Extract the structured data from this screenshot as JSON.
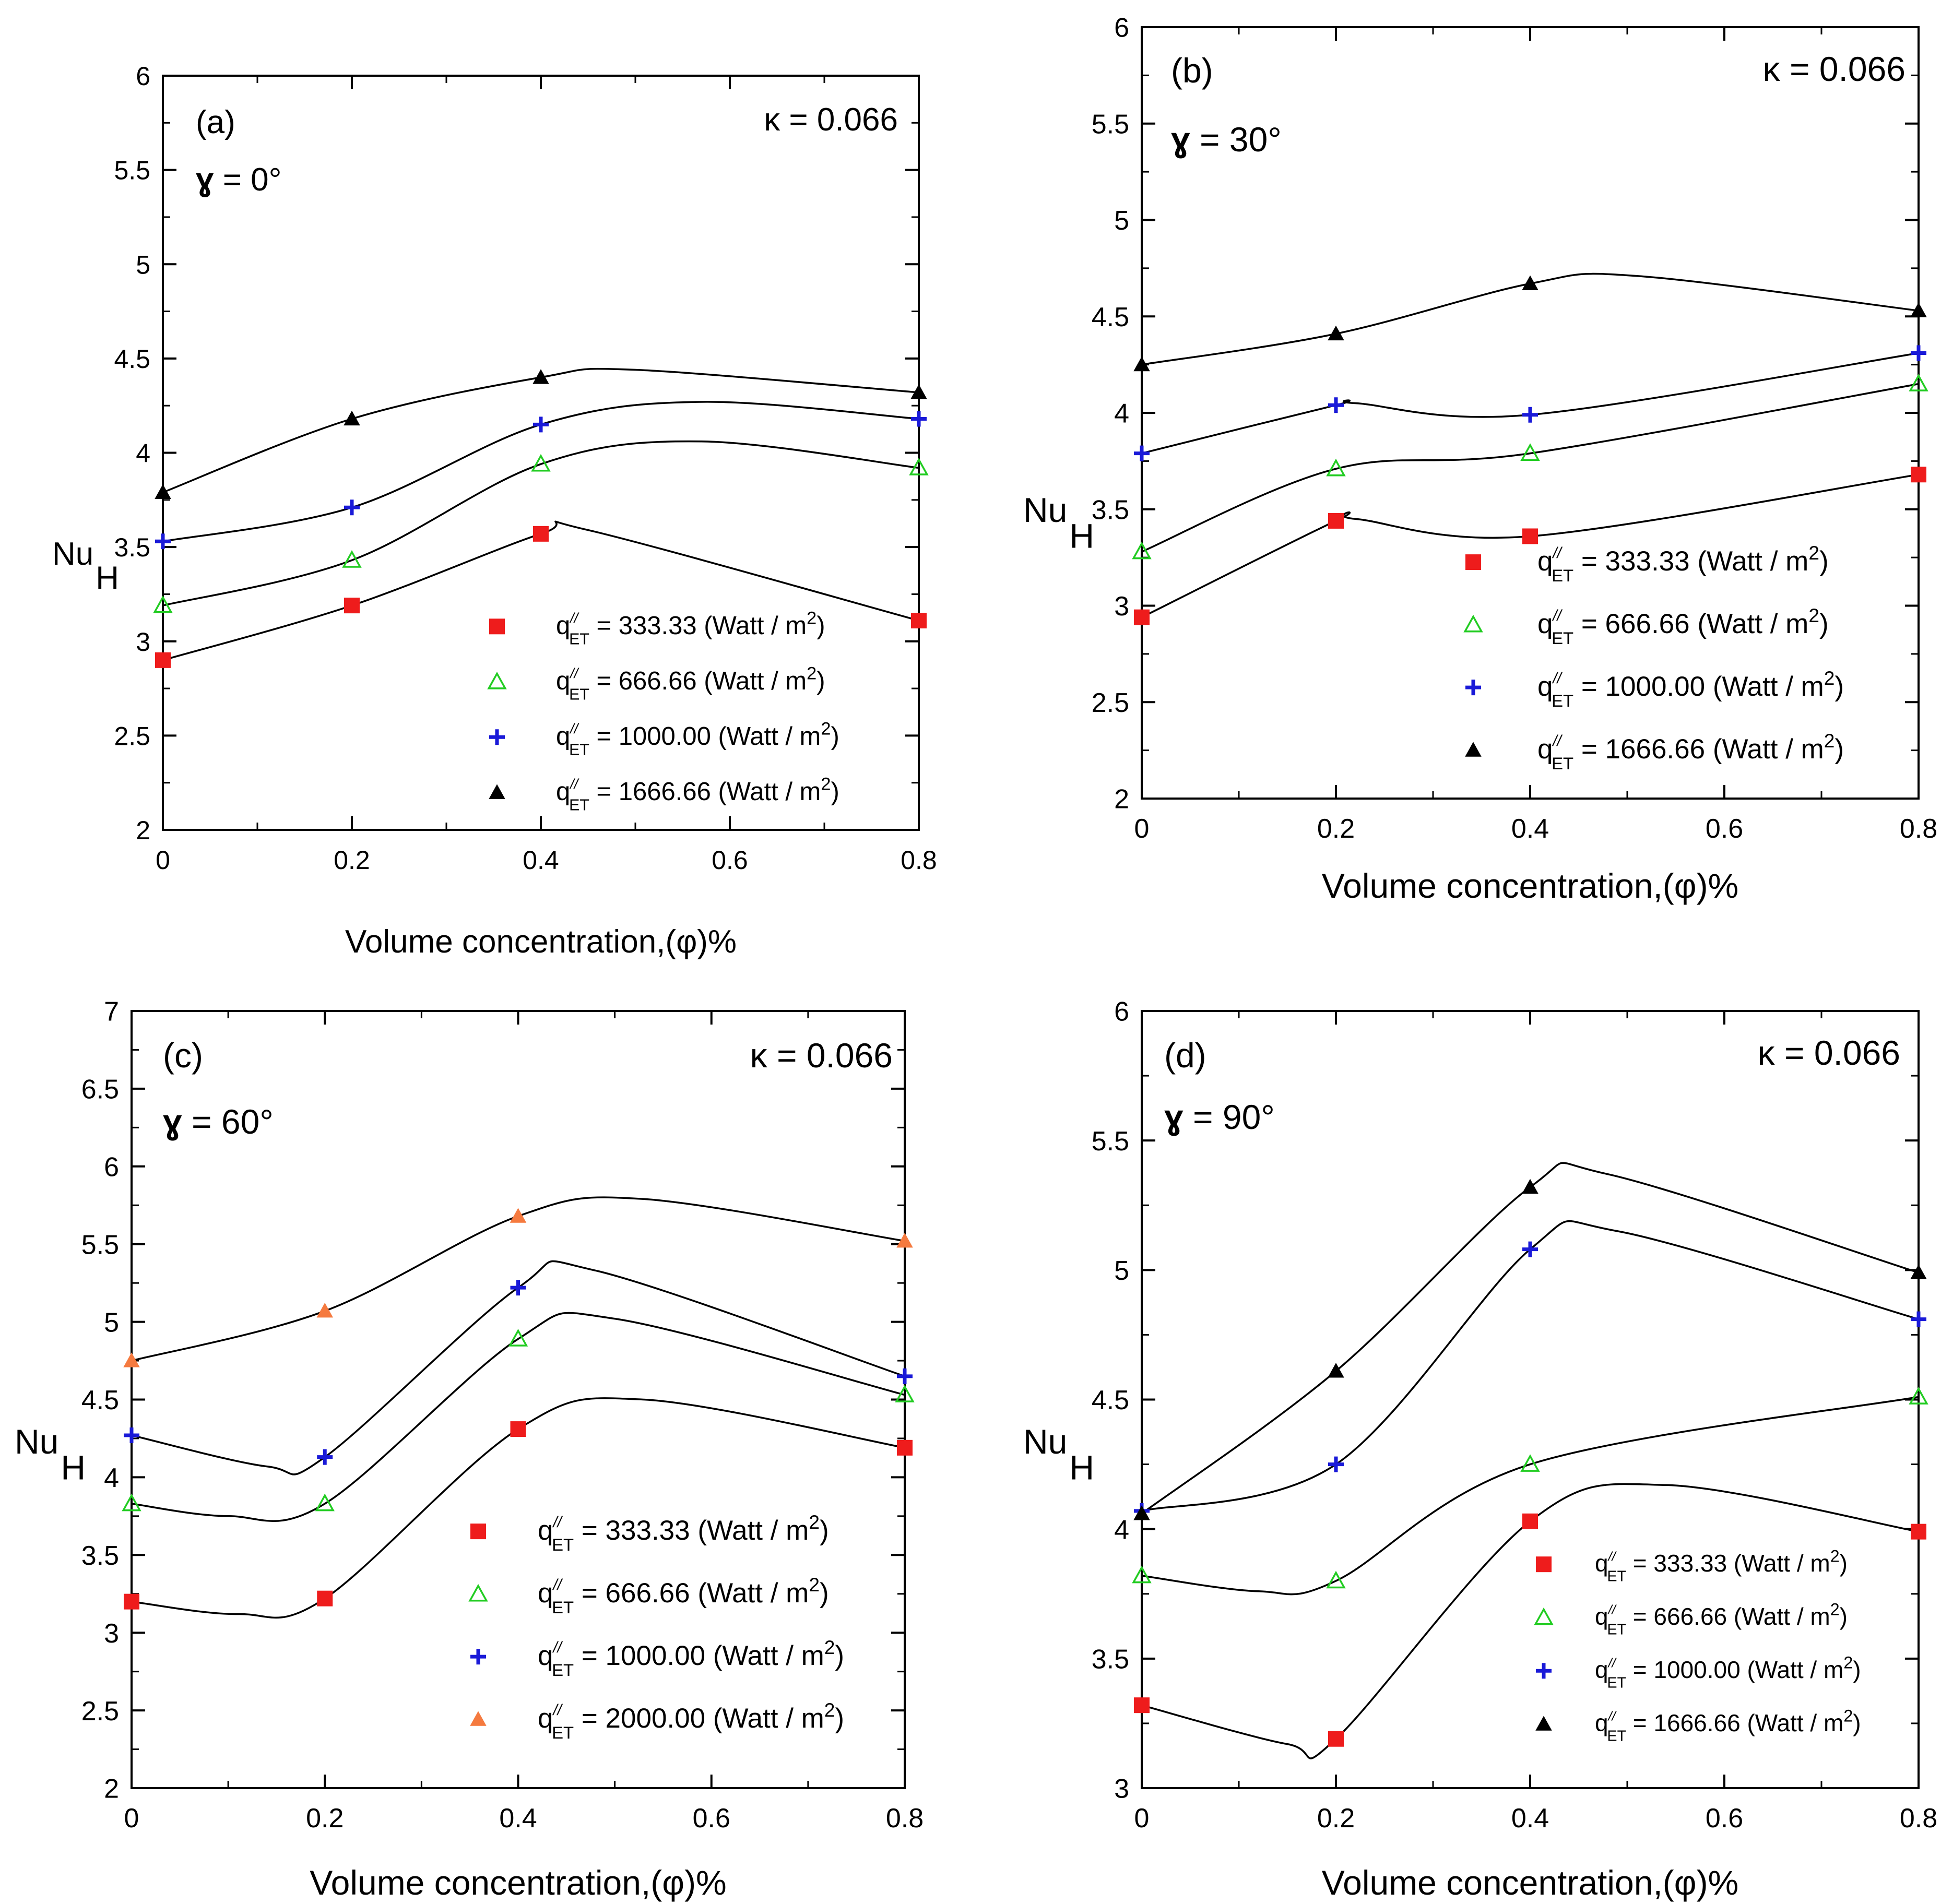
{
  "chart_data": [
    {
      "type": "scatter",
      "panel_label": "(a)",
      "kappa_label": "κ = 0.066",
      "gamma_symbol": "ɣ",
      "gamma_text": " = 0°",
      "xlabel": "Volume concentration,(φ)%",
      "ylabel": "Nu",
      "ylabel_sub": "H",
      "xlim": [
        0,
        0.8
      ],
      "ylim": [
        2,
        6
      ],
      "x_ticks": [
        0,
        0.2,
        0.4,
        0.6,
        0.8
      ],
      "x_tick_labels": [
        "0",
        "0.2",
        "0.4",
        "0.6",
        "0.8"
      ],
      "y_ticks": [
        2,
        2.5,
        3,
        3.5,
        4,
        4.5,
        5,
        5.5,
        6
      ],
      "y_tick_labels": [
        "2",
        "2.5",
        "3",
        "3.5",
        "4",
        "4.5",
        "5",
        "5.5",
        "6"
      ],
      "x": [
        0,
        0.2,
        0.4,
        0.8
      ],
      "series": [
        {
          "name": "333.33 (Watt / m2)",
          "marker": "square",
          "color": "#ee1c1c",
          "values": [
            2.9,
            3.19,
            3.57,
            3.11
          ],
          "peak": [
            0.45,
            3.59
          ]
        },
        {
          "name": "666.66 (Watt / m2)",
          "marker": "triangle-open",
          "color": "#22cc22",
          "values": [
            3.19,
            3.43,
            3.94,
            3.92
          ],
          "peak": [
            0.57,
            4.06
          ]
        },
        {
          "name": "1000.00 (Watt / m2)",
          "marker": "plus",
          "color": "#1a1ad8",
          "values": [
            3.53,
            3.71,
            4.15,
            4.18
          ],
          "peak": [
            0.57,
            4.27
          ]
        },
        {
          "name": "1666.66 (Watt / m2)",
          "marker": "triangle",
          "color": "#000000",
          "values": [
            3.79,
            4.18,
            4.4,
            4.32
          ],
          "peak": [
            0.5,
            4.44
          ]
        }
      ],
      "legend_prefix": "q",
      "legend_sup": "//",
      "legend_sub": "ET",
      "legend": [
        {
          "label": " = 333.33 (Watt / m",
          "sup": "2",
          "close": ")"
        },
        {
          "label": " = 666.66 (Watt / m",
          "sup": "2",
          "close": ")"
        },
        {
          "label": " = 1000.00 (Watt / m",
          "sup": "2",
          "close": ")"
        },
        {
          "label": " = 1666.66 (Watt / m",
          "sup": "2",
          "close": ")"
        }
      ]
    },
    {
      "type": "scatter",
      "panel_label": "(b)",
      "kappa_label": "κ = 0.066",
      "gamma_symbol": "ɣ",
      "gamma_text": " = 30°",
      "xlabel": "Volume concentration,(φ)%",
      "ylabel": "Nu",
      "ylabel_sub": "H",
      "xlim": [
        0,
        0.8
      ],
      "ylim": [
        2,
        6
      ],
      "x_ticks": [
        0,
        0.2,
        0.4,
        0.6,
        0.8
      ],
      "x_tick_labels": [
        "0",
        "0.2",
        "0.4",
        "0.6",
        "0.8"
      ],
      "y_ticks": [
        2,
        2.5,
        3,
        3.5,
        4,
        4.5,
        5,
        5.5,
        6
      ],
      "y_tick_labels": [
        "2",
        "2.5",
        "3",
        "3.5",
        "4",
        "4.5",
        "5",
        "5.5",
        "6"
      ],
      "x": [
        0,
        0.2,
        0.4,
        0.8
      ],
      "series": [
        {
          "name": "333.33 (Watt / m2)",
          "marker": "square",
          "color": "#ee1c1c",
          "values": [
            2.94,
            3.44,
            3.36,
            3.68
          ],
          "peak": [
            0.22,
            3.45
          ]
        },
        {
          "name": "666.66 (Watt / m2)",
          "marker": "triangle-open",
          "color": "#22cc22",
          "values": [
            3.28,
            3.71,
            3.79,
            4.15
          ]
        },
        {
          "name": "1000.00 (Watt / m2)",
          "marker": "plus",
          "color": "#1a1ad8",
          "values": [
            3.79,
            4.04,
            3.99,
            4.31
          ],
          "peak": [
            0.22,
            4.05
          ]
        },
        {
          "name": "1666.66 (Watt / m2)",
          "marker": "triangle",
          "color": "#000000",
          "values": [
            4.25,
            4.41,
            4.67,
            4.53
          ],
          "peak": [
            0.51,
            4.71
          ]
        }
      ],
      "legend_prefix": "q",
      "legend_sup": "//",
      "legend_sub": "ET",
      "legend": [
        {
          "label": " = 333.33 (Watt / m",
          "sup": "2",
          "close": ")"
        },
        {
          "label": " = 666.66 (Watt / m",
          "sup": "2",
          "close": ")"
        },
        {
          "label": " = 1000.00 (Watt / m",
          "sup": "2",
          "close": ")"
        },
        {
          "label": " = 1666.66 (Watt / m",
          "sup": "2",
          "close": ")"
        }
      ]
    },
    {
      "type": "scatter",
      "panel_label": "(c)",
      "kappa_label": "κ = 0.066",
      "gamma_symbol": "ɣ",
      "gamma_text": " = 60°",
      "xlabel": "Volume concentration,(φ)%",
      "ylabel": "Nu",
      "ylabel_sub": "H",
      "xlim": [
        0,
        0.8
      ],
      "ylim": [
        2,
        7
      ],
      "x_ticks": [
        0,
        0.2,
        0.4,
        0.6,
        0.8
      ],
      "x_tick_labels": [
        "0",
        "0.2",
        "0.4",
        "0.6",
        "0.8"
      ],
      "y_ticks": [
        2,
        2.5,
        3,
        3.5,
        4,
        4.5,
        5,
        5.5,
        6,
        6.5,
        7
      ],
      "y_tick_labels": [
        "2",
        "2.5",
        "3",
        "3.5",
        "4",
        "4.5",
        "5",
        "5.5",
        "6",
        "6.5",
        "7"
      ],
      "x": [
        0,
        0.2,
        0.4,
        0.8
      ],
      "series": [
        {
          "name": "333.33 (Watt / m2)",
          "marker": "square",
          "color": "#ee1c1c",
          "values": [
            3.2,
            3.22,
            4.31,
            4.19
          ],
          "trough": [
            0.11,
            3.12
          ],
          "peak": [
            0.53,
            4.5
          ]
        },
        {
          "name": "666.66 (Watt / m2)",
          "marker": "triangle-open",
          "color": "#22cc22",
          "values": [
            3.83,
            3.83,
            4.89,
            4.53
          ],
          "trough": [
            0.1,
            3.75
          ],
          "peak": [
            0.5,
            5.02
          ]
        },
        {
          "name": "1000.00 (Watt / m2)",
          "marker": "plus",
          "color": "#1a1ad8",
          "values": [
            4.27,
            4.13,
            5.22,
            4.65
          ],
          "trough": [
            0.14,
            4.07
          ],
          "peak": [
            0.48,
            5.33
          ]
        },
        {
          "name": "2000.00 (Watt / m2)",
          "marker": "triangle",
          "color": "#f57a3f",
          "values": [
            4.75,
            5.07,
            5.68,
            5.52
          ],
          "peak": [
            0.53,
            5.79
          ]
        }
      ],
      "legend_prefix": "q",
      "legend_sup": "//",
      "legend_sub": "ET",
      "legend": [
        {
          "label": " = 333.33 (Watt / m",
          "sup": "2",
          "close": ")"
        },
        {
          "label": " = 666.66 (Watt / m",
          "sup": "2",
          "close": ")"
        },
        {
          "label": " = 1000.00 (Watt / m",
          "sup": "2",
          "close": ")"
        },
        {
          "label": " = 2000.00 (Watt / m",
          "sup": "2",
          "close": ")"
        }
      ]
    },
    {
      "type": "scatter",
      "panel_label": "(d)",
      "kappa_label": "κ = 0.066",
      "gamma_symbol": "ɣ",
      "gamma_text": " = 90°",
      "xlabel": "Volume concentration,(φ)%",
      "ylabel": "Nu",
      "ylabel_sub": "H",
      "xlim": [
        0,
        0.8
      ],
      "ylim": [
        3,
        6
      ],
      "x_ticks": [
        0,
        0.2,
        0.4,
        0.6,
        0.8
      ],
      "x_tick_labels": [
        "0",
        "0.2",
        "0.4",
        "0.6",
        "0.8"
      ],
      "y_ticks": [
        3,
        3.5,
        4,
        4.5,
        5,
        5.5,
        6
      ],
      "y_tick_labels": [
        "3",
        "3.5",
        "4",
        "4.5",
        "5",
        "5.5",
        "6"
      ],
      "x": [
        0,
        0.2,
        0.4,
        0.8
      ],
      "series": [
        {
          "name": "333.33 (Watt / m2)",
          "marker": "square",
          "color": "#ee1c1c",
          "values": [
            3.32,
            3.19,
            4.03,
            3.99
          ],
          "trough": [
            0.15,
            3.17
          ],
          "peak": [
            0.54,
            4.17
          ]
        },
        {
          "name": "666.66 (Watt / m2)",
          "marker": "triangle-open",
          "color": "#22cc22",
          "values": [
            3.82,
            3.8,
            4.25,
            4.51
          ],
          "trough": [
            0.12,
            3.76
          ]
        },
        {
          "name": "1000.00 (Watt / m2)",
          "marker": "plus",
          "color": "#1a1ad8",
          "values": [
            4.07,
            4.25,
            5.08,
            4.81
          ],
          "peak": [
            0.49,
            5.15
          ]
        },
        {
          "name": "1666.66 (Watt / m2)",
          "marker": "triangle",
          "color": "#000000",
          "values": [
            4.06,
            4.61,
            5.32,
            4.99
          ],
          "peak": [
            0.48,
            5.37
          ]
        }
      ],
      "legend_prefix": "q",
      "legend_sup": "//",
      "legend_sub": "ET",
      "legend": [
        {
          "label": " = 333.33 (Watt / m",
          "sup": "2",
          "close": ")"
        },
        {
          "label": " = 666.66 (Watt / m",
          "sup": "2",
          "close": ")"
        },
        {
          "label": " = 1000.00 (Watt / m",
          "sup": "2",
          "close": ")"
        },
        {
          "label": " = 1666.66 (Watt / m",
          "sup": "2",
          "close": ")"
        }
      ]
    }
  ]
}
